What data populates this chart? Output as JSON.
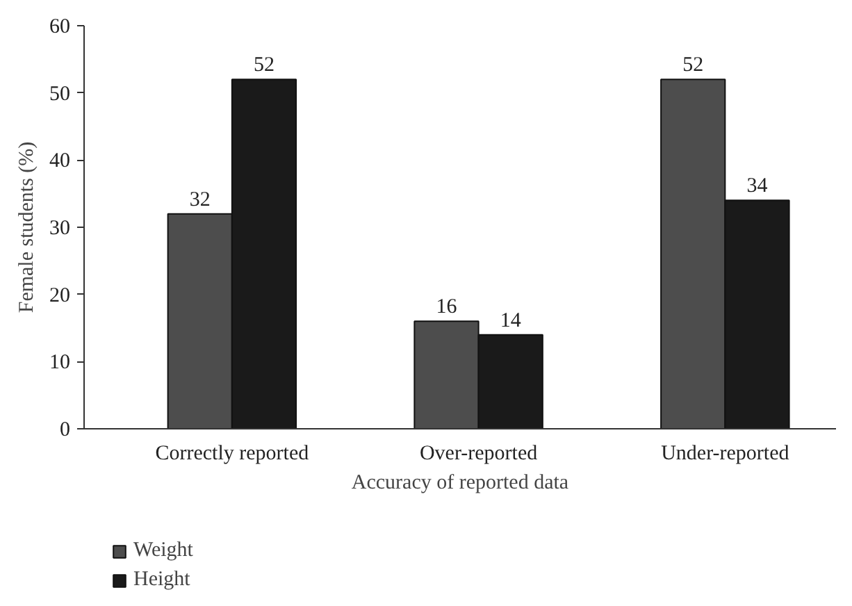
{
  "chart_data": {
    "type": "bar",
    "xlabel": "Accuracy of reported data",
    "ylabel": "Female students (%)",
    "categories": [
      "Correctly reported",
      "Over-reported",
      "Under-reported"
    ],
    "series": [
      {
        "name": "Weight",
        "color": "#4d4d4d",
        "values": [
          32,
          16,
          52
        ]
      },
      {
        "name": "Height",
        "color": "#1a1a1a",
        "values": [
          52,
          14,
          34
        ]
      }
    ],
    "ylim": [
      0,
      60
    ],
    "yticks": [
      0,
      10,
      20,
      30,
      40,
      50,
      60
    ],
    "data_labels": true,
    "grid": false,
    "legend": "bottom"
  }
}
